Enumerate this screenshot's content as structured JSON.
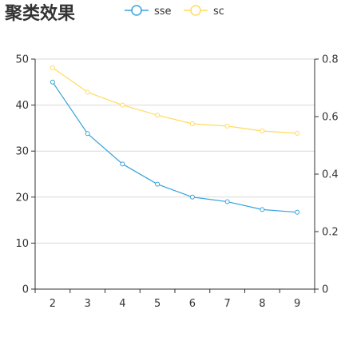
{
  "chart_data": {
    "type": "line",
    "title": "聚类效果",
    "categories": [
      "2",
      "3",
      "4",
      "5",
      "6",
      "7",
      "8",
      "9"
    ],
    "y_left": {
      "ylim": [
        0,
        50
      ],
      "ticks": [
        0,
        10,
        20,
        30,
        40,
        50
      ]
    },
    "y_right": {
      "ylim": [
        0,
        0.8
      ],
      "ticks": [
        "0",
        "0.2",
        "0.4",
        "0.6",
        "0.8"
      ]
    },
    "grid": true,
    "legend_position": "top",
    "series": [
      {
        "name": "sse",
        "axis": "left",
        "color": "#37a2da",
        "values": [
          45,
          33.8,
          27.2,
          22.8,
          20,
          19,
          17.3,
          16.7
        ]
      },
      {
        "name": "sc",
        "axis": "right",
        "color": "#ffdb5c",
        "values": [
          0.77,
          0.685,
          0.64,
          0.605,
          0.575,
          0.567,
          0.55,
          0.542
        ]
      }
    ]
  }
}
